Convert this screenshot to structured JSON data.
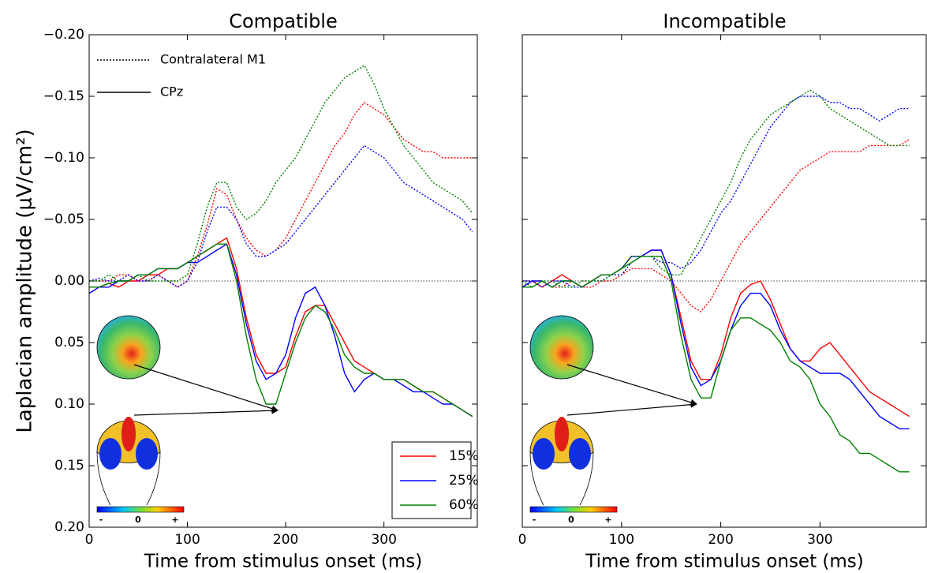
{
  "chart_data": [
    {
      "type": "line",
      "title": "Compatible",
      "xlabel": "Time from stimulus onset (ms)",
      "ylabel": "Laplacian amplitude (μV/cm²)",
      "xlim": [
        0,
        395
      ],
      "xticks": [
        0,
        100,
        200,
        300
      ],
      "ylim": [
        -0.2,
        0.2
      ],
      "y_inverted": true,
      "show_ytick_labels": true,
      "yticks": [
        {
          "value": -0.2,
          "label": "−0.20"
        },
        {
          "value": -0.15,
          "label": "−0.15"
        },
        {
          "value": -0.1,
          "label": "−0.10"
        },
        {
          "value": -0.05,
          "label": "−0.05"
        },
        {
          "value": 0,
          "label": "0.00"
        },
        {
          "value": 0.05,
          "label": "0.05"
        },
        {
          "value": 0.1,
          "label": "0.10"
        },
        {
          "value": 0.15,
          "label": "0.15"
        },
        {
          "value": 0.2,
          "label": "0.20"
        }
      ],
      "hline": 0,
      "line_styles": [
        {
          "label": "Contralateral M1",
          "dash": "dotted"
        },
        {
          "label": "CPz",
          "dash": "solid"
        }
      ],
      "colorbar_labels": [
        "-",
        "0",
        "+"
      ],
      "x": [
        0,
        10,
        20,
        30,
        40,
        50,
        60,
        70,
        80,
        90,
        100,
        110,
        120,
        130,
        140,
        150,
        160,
        170,
        180,
        190,
        200,
        210,
        220,
        230,
        240,
        250,
        260,
        270,
        280,
        290,
        300,
        310,
        320,
        330,
        340,
        350,
        360,
        370,
        380,
        390
      ],
      "series": [
        {
          "name": "15%",
          "color": "#ff0000",
          "lines": [
            {
              "values": [
                0.0,
                0.0,
                0.0,
                -0.005,
                -0.005,
                0.0,
                0.0,
                -0.005,
                0.0,
                0.005,
                0.0,
                -0.02,
                -0.045,
                -0.075,
                -0.07,
                -0.05,
                -0.035,
                -0.025,
                -0.02,
                -0.025,
                -0.035,
                -0.05,
                -0.065,
                -0.08,
                -0.095,
                -0.11,
                -0.12,
                -0.135,
                -0.145,
                -0.14,
                -0.135,
                -0.125,
                -0.115,
                -0.11,
                -0.105,
                -0.105,
                -0.1,
                -0.1,
                -0.1,
                -0.1
              ]
            },
            {
              "values": [
                0.005,
                0.005,
                0.002,
                0.005,
                0.0,
                0.0,
                -0.005,
                -0.005,
                -0.01,
                -0.01,
                -0.015,
                -0.02,
                -0.025,
                -0.03,
                -0.035,
                -0.01,
                0.03,
                0.06,
                0.075,
                0.075,
                0.07,
                0.045,
                0.025,
                0.02,
                0.02,
                0.035,
                0.05,
                0.065,
                0.07,
                0.075,
                0.08,
                0.08,
                0.08,
                0.085,
                0.09,
                0.09,
                0.095,
                0.1,
                0.105,
                0.11
              ]
            }
          ]
        },
        {
          "name": "25%",
          "color": "#0000ff",
          "lines": [
            {
              "values": [
                0.0,
                -0.002,
                0.0,
                0.0,
                -0.005,
                0.0,
                0.0,
                -0.005,
                0.0,
                0.005,
                0.0,
                -0.015,
                -0.04,
                -0.06,
                -0.06,
                -0.05,
                -0.03,
                -0.02,
                -0.02,
                -0.025,
                -0.03,
                -0.04,
                -0.05,
                -0.06,
                -0.07,
                -0.08,
                -0.09,
                -0.1,
                -0.11,
                -0.105,
                -0.1,
                -0.09,
                -0.08,
                -0.075,
                -0.07,
                -0.065,
                -0.06,
                -0.055,
                -0.05,
                -0.04
              ]
            },
            {
              "values": [
                0.01,
                0.005,
                0.005,
                0.0,
                0.0,
                -0.005,
                -0.005,
                -0.01,
                -0.01,
                -0.01,
                -0.015,
                -0.015,
                -0.02,
                -0.025,
                -0.03,
                -0.005,
                0.035,
                0.065,
                0.08,
                0.075,
                0.06,
                0.03,
                0.01,
                0.005,
                0.02,
                0.045,
                0.075,
                0.09,
                0.08,
                0.075,
                0.08,
                0.08,
                0.085,
                0.09,
                0.09,
                0.095,
                0.1,
                0.1,
                0.105,
                0.11
              ]
            }
          ]
        },
        {
          "name": "60%",
          "color": "#008000",
          "lines": [
            {
              "values": [
                0.0,
                0.0,
                -0.005,
                0.0,
                0.0,
                -0.005,
                0.0,
                0.0,
                0.0,
                0.0,
                -0.005,
                -0.03,
                -0.06,
                -0.08,
                -0.08,
                -0.06,
                -0.05,
                -0.055,
                -0.065,
                -0.08,
                -0.09,
                -0.1,
                -0.115,
                -0.13,
                -0.145,
                -0.155,
                -0.165,
                -0.17,
                -0.175,
                -0.16,
                -0.14,
                -0.125,
                -0.11,
                -0.1,
                -0.09,
                -0.08,
                -0.075,
                -0.07,
                -0.065,
                -0.055
              ]
            },
            {
              "values": [
                0.005,
                0.005,
                0.002,
                0.0,
                0.0,
                -0.005,
                -0.005,
                -0.01,
                -0.01,
                -0.01,
                -0.015,
                -0.02,
                -0.025,
                -0.03,
                -0.03,
                0.0,
                0.045,
                0.08,
                0.1,
                0.1,
                0.075,
                0.05,
                0.03,
                0.02,
                0.025,
                0.04,
                0.06,
                0.07,
                0.075,
                0.075,
                0.08,
                0.08,
                0.08,
                0.085,
                0.09,
                0.09,
                0.095,
                0.1,
                0.105,
                0.11
              ]
            }
          ]
        }
      ]
    },
    {
      "type": "line",
      "title": "Incompatible",
      "xlabel": "Time from stimulus onset (ms)",
      "xlim": [
        0,
        407
      ],
      "xticks": [
        0,
        100,
        200,
        300
      ],
      "ylim": [
        -0.2,
        0.2
      ],
      "y_inverted": true,
      "show_ytick_labels": false,
      "yticks": [
        -0.2,
        -0.15,
        -0.1,
        -0.05,
        0,
        0.05,
        0.1,
        0.15,
        0.2
      ],
      "hline": 0,
      "line_styles": [
        {
          "dash": "dotted"
        },
        {
          "dash": "solid"
        }
      ],
      "colorbar_labels": [
        "-",
        "0",
        "+"
      ],
      "x": [
        0,
        10,
        20,
        30,
        40,
        50,
        60,
        70,
        80,
        90,
        100,
        110,
        120,
        130,
        140,
        150,
        160,
        170,
        180,
        190,
        200,
        210,
        220,
        230,
        240,
        250,
        260,
        270,
        280,
        290,
        300,
        310,
        320,
        330,
        340,
        350,
        360,
        370,
        380,
        390
      ],
      "series": [
        {
          "color": "#ff0000",
          "lines": [
            {
              "values": [
                0.0,
                0.0,
                0.0,
                0.005,
                0.005,
                0.0,
                0.005,
                0.005,
                0.0,
                0.0,
                -0.005,
                -0.01,
                -0.01,
                -0.01,
                -0.005,
                0.0,
                0.01,
                0.02,
                0.025,
                0.015,
                0.0,
                -0.015,
                -0.03,
                -0.04,
                -0.05,
                -0.06,
                -0.07,
                -0.08,
                -0.09,
                -0.095,
                -0.1,
                -0.105,
                -0.105,
                -0.105,
                -0.105,
                -0.11,
                -0.11,
                -0.11,
                -0.11,
                -0.115
              ]
            },
            {
              "values": [
                0.005,
                0.0,
                0.005,
                0.0,
                -0.005,
                0.0,
                0.005,
                0.0,
                -0.005,
                -0.005,
                -0.01,
                -0.02,
                -0.02,
                -0.025,
                -0.025,
                -0.005,
                0.03,
                0.065,
                0.08,
                0.08,
                0.06,
                0.03,
                0.01,
                0.003,
                0.0,
                0.015,
                0.035,
                0.055,
                0.065,
                0.065,
                0.055,
                0.05,
                0.06,
                0.07,
                0.08,
                0.09,
                0.095,
                0.1,
                0.105,
                0.11
              ]
            }
          ]
        },
        {
          "color": "#0000ff",
          "lines": [
            {
              "values": [
                0.0,
                0.0,
                0.005,
                0.0,
                0.0,
                0.005,
                0.005,
                0.0,
                0.0,
                -0.005,
                -0.005,
                -0.015,
                -0.02,
                -0.02,
                -0.015,
                -0.015,
                -0.01,
                -0.015,
                -0.025,
                -0.04,
                -0.055,
                -0.065,
                -0.08,
                -0.095,
                -0.11,
                -0.125,
                -0.135,
                -0.145,
                -0.15,
                -0.15,
                -0.15,
                -0.145,
                -0.145,
                -0.14,
                -0.14,
                -0.135,
                -0.13,
                -0.135,
                -0.14,
                -0.14
              ]
            },
            {
              "values": [
                0.005,
                0.0,
                0.0,
                0.005,
                0.0,
                0.0,
                0.005,
                0.0,
                -0.005,
                -0.005,
                -0.01,
                -0.02,
                -0.02,
                -0.025,
                -0.025,
                -0.005,
                0.035,
                0.07,
                0.085,
                0.08,
                0.065,
                0.04,
                0.02,
                0.01,
                0.01,
                0.02,
                0.04,
                0.055,
                0.065,
                0.07,
                0.075,
                0.075,
                0.075,
                0.08,
                0.09,
                0.1,
                0.11,
                0.115,
                0.12,
                0.12
              ]
            }
          ]
        },
        {
          "color": "#008000",
          "lines": [
            {
              "values": [
                0.0,
                0.005,
                0.0,
                0.0,
                0.005,
                0.005,
                0.0,
                0.0,
                0.0,
                -0.005,
                -0.01,
                -0.02,
                -0.02,
                -0.02,
                -0.01,
                -0.005,
                -0.005,
                -0.02,
                -0.035,
                -0.05,
                -0.065,
                -0.08,
                -0.1,
                -0.115,
                -0.125,
                -0.135,
                -0.14,
                -0.145,
                -0.15,
                -0.155,
                -0.15,
                -0.14,
                -0.135,
                -0.13,
                -0.125,
                -0.12,
                -0.115,
                -0.11,
                -0.11,
                -0.11
              ]
            },
            {
              "values": [
                0.005,
                0.005,
                0.0,
                0.005,
                0.0,
                0.0,
                0.005,
                0.0,
                -0.005,
                -0.005,
                -0.01,
                -0.015,
                -0.02,
                -0.02,
                -0.02,
                0.0,
                0.045,
                0.08,
                0.095,
                0.095,
                0.065,
                0.04,
                0.03,
                0.03,
                0.035,
                0.04,
                0.05,
                0.065,
                0.07,
                0.08,
                0.1,
                0.11,
                0.125,
                0.13,
                0.14,
                0.14,
                0.145,
                0.15,
                0.155,
                0.155
              ]
            }
          ]
        }
      ]
    }
  ]
}
